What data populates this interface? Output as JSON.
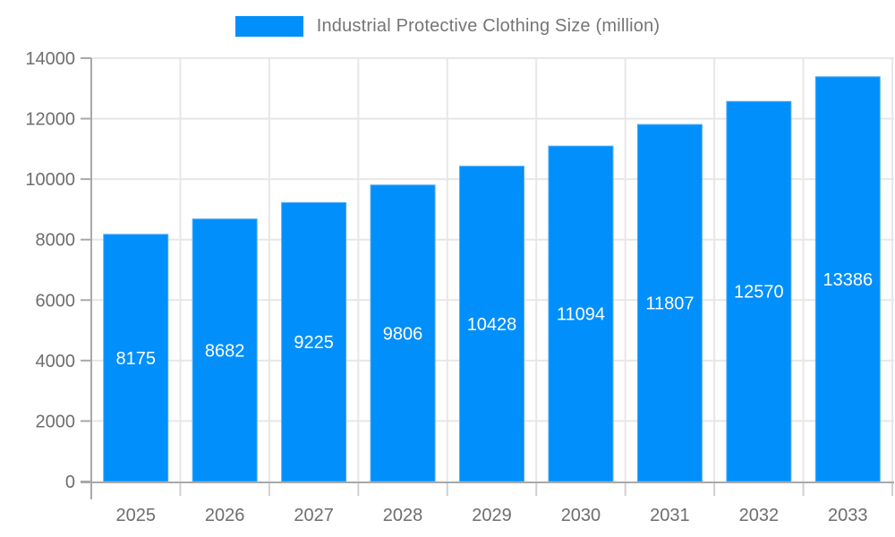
{
  "chart_data": {
    "type": "bar",
    "title": "Industrial Protective Clothing Size (million)",
    "series_name": "Industrial Protective Clothing Size (million)",
    "categories": [
      "2025",
      "2026",
      "2027",
      "2028",
      "2029",
      "2030",
      "2031",
      "2032",
      "2033"
    ],
    "values": [
      8175,
      8682,
      9225,
      9806,
      10428,
      11094,
      11807,
      12570,
      13386
    ],
    "xlabel": "",
    "ylabel": "",
    "ylim": [
      0,
      14000
    ],
    "ytick_step": 2000,
    "ytick_labels": [
      "0",
      "2000",
      "4000",
      "6000",
      "8000",
      "10000",
      "12000",
      "14000"
    ],
    "grid": true,
    "legend_position": "top",
    "value_labels": "inside-center",
    "bar_color": "#008FFB",
    "bar_edge_color": "#55aef7",
    "value_label_color": "#ffffff",
    "axis_line_color": "#a8a8a8",
    "grid_color": "#e7e7e7",
    "tick_color": "#cfcfcf",
    "axis_text_color": "#6e6e6e",
    "legend_text_color": "#757575"
  }
}
